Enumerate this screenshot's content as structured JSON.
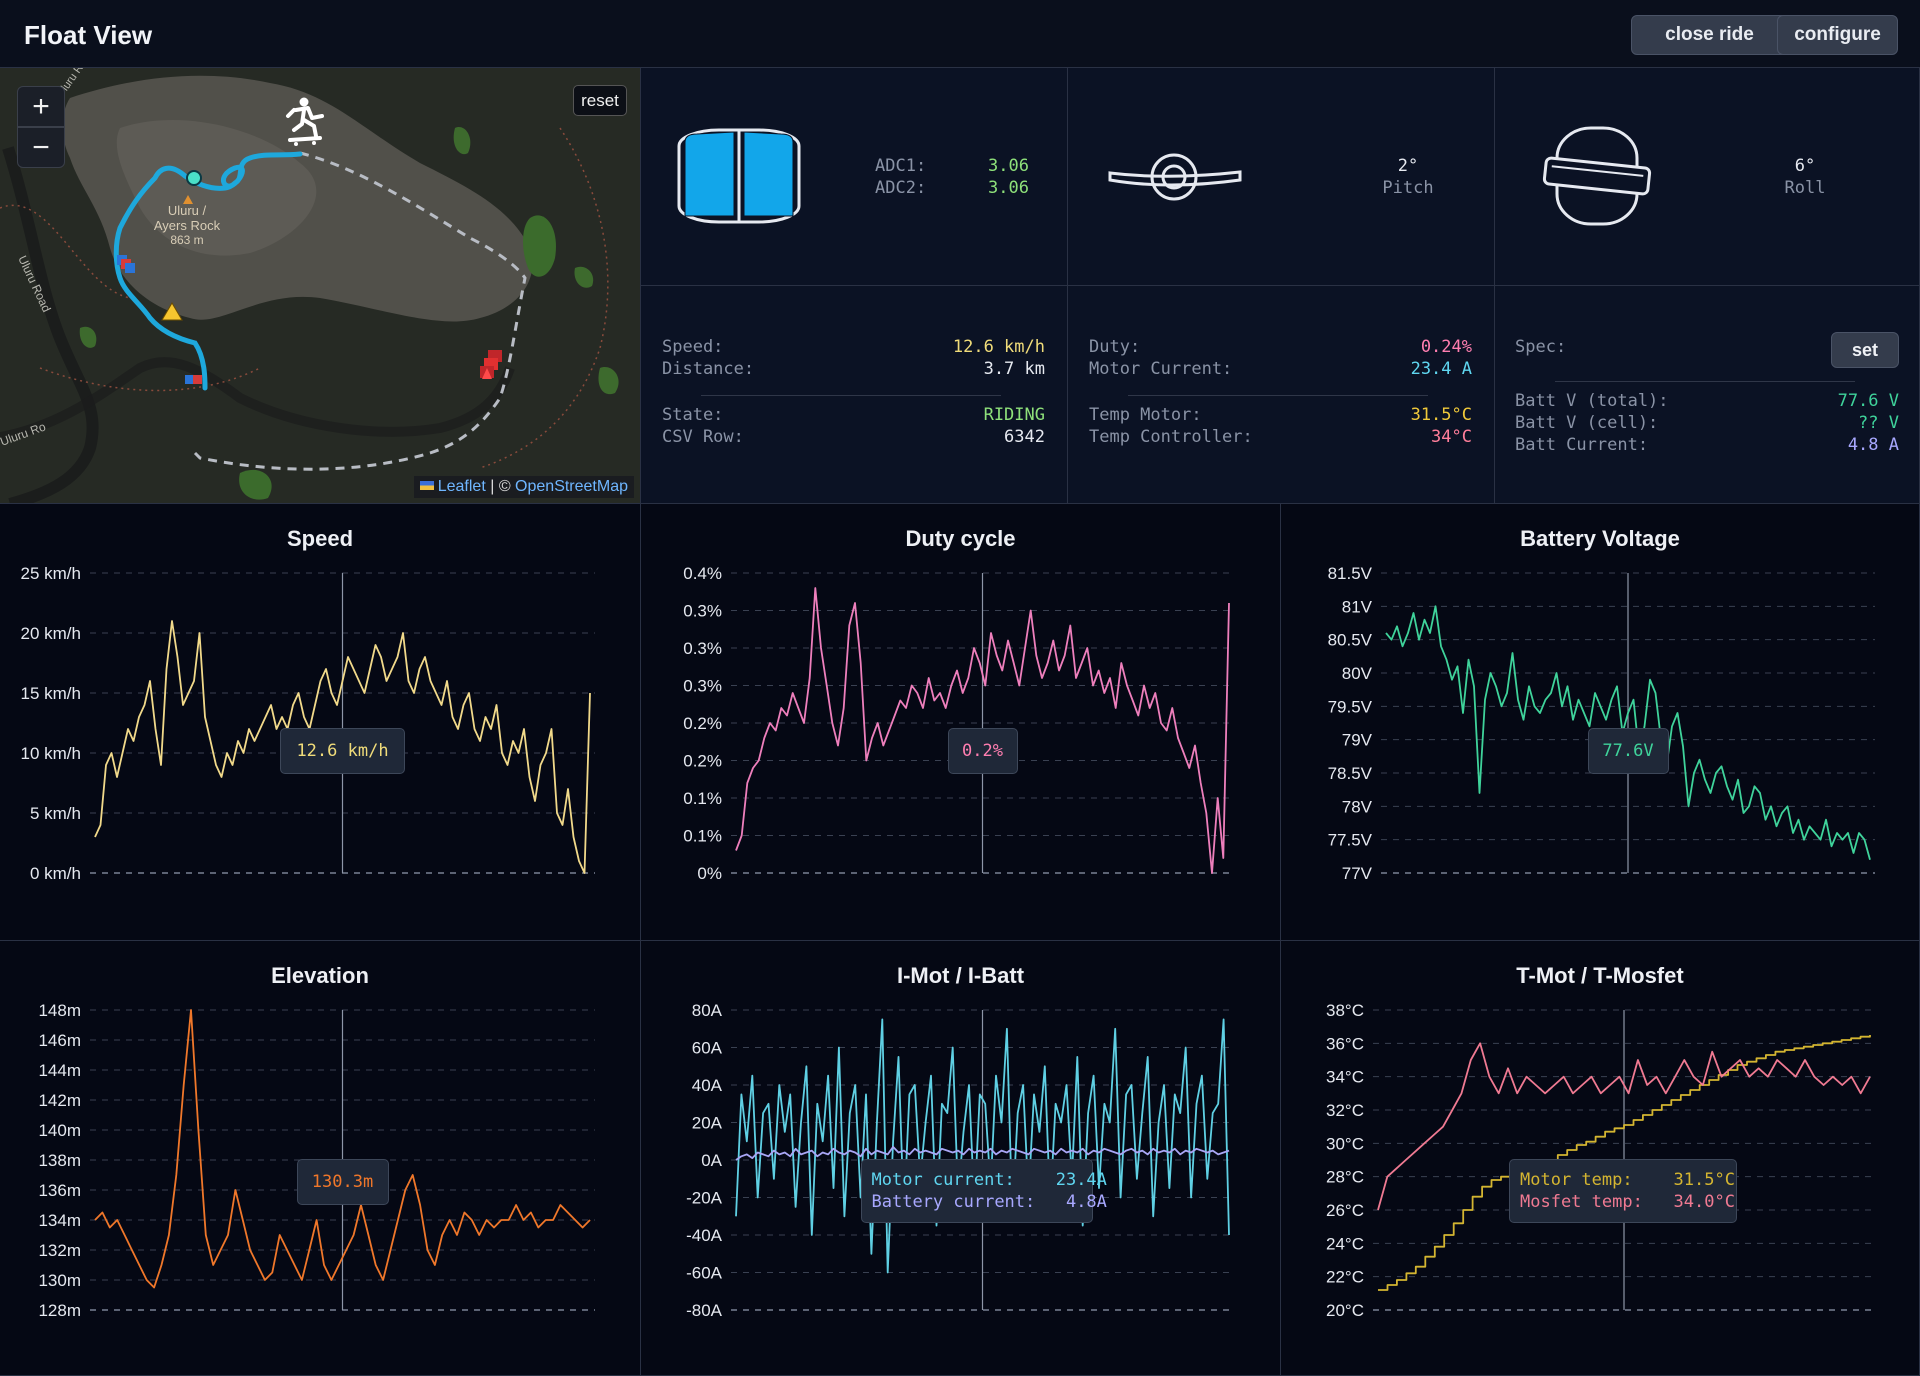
{
  "header": {
    "title": "Float View",
    "close_ride_label": "close ride",
    "configure_label": "configure"
  },
  "map": {
    "zoom_in": "+",
    "zoom_out": "−",
    "reset_label": "reset",
    "place_label_line1": "Uluru /",
    "place_label_line2": "Ayers Rock",
    "place_label_line3": "863 m",
    "road_label_1": "Uluru Road",
    "road_label_2": "Uluru Road",
    "road_label_3": "Uluru Ro",
    "attribution_leaflet": "Leaflet",
    "attribution_sep": " | © ",
    "attribution_osm": "OpenStreetMap"
  },
  "adc": {
    "adc1_label": "ADC1:",
    "adc1_value": "3.06",
    "adc2_label": "ADC2:",
    "adc2_value": "3.06"
  },
  "pitch": {
    "value": "2°",
    "label": "Pitch"
  },
  "roll": {
    "value": "6°",
    "label": "Roll"
  },
  "ride": {
    "speed_label": "Speed:",
    "speed_value": "12.6 km/h",
    "distance_label": "Distance:",
    "distance_value": "3.7 km",
    "state_label": "State:",
    "state_value": "RIDING",
    "csv_row_label": "CSV Row:",
    "csv_row_value": "6342"
  },
  "motor": {
    "duty_label": "Duty:",
    "duty_value": "0.24%",
    "motor_current_label": "Motor Current:",
    "motor_current_value": "23.4 A",
    "temp_motor_label": "Temp Motor:",
    "temp_motor_value": "31.5°C",
    "temp_controller_label": "Temp Controller:",
    "temp_controller_value": "34°C"
  },
  "battery": {
    "spec_label": "Spec:",
    "set_label": "set",
    "batt_v_total_label": "Batt V (total):",
    "batt_v_total_value": "77.6 V",
    "batt_v_cell_label": "Batt V (cell):",
    "batt_v_cell_value": "?? V",
    "batt_current_label": "Batt Current:",
    "batt_current_value": "4.8 A"
  },
  "colors": {
    "speed": "#f1d98a",
    "duty": "#ee7fbc",
    "voltage": "#3fd39b",
    "elevation": "#f0772a",
    "motor_current": "#5fd0e4",
    "battery_current": "#a9a6f5",
    "motor_temp": "#d4b531",
    "mosfet_temp": "#f07a92",
    "value_yellow": "#f0dc7a",
    "value_green": "#8ee07a",
    "value_pink": "#ff7eb0",
    "value_cyan": "#5fd6f0",
    "value_violet": "#a8a8ff",
    "track": "#1ea8dc"
  },
  "chart_data": [
    {
      "id": "speed",
      "type": "line",
      "title": "Speed",
      "ylim": [
        0,
        25
      ],
      "yticks": [
        "0 km/h",
        "5 km/h",
        "10 km/h",
        "15 km/h",
        "20 km/h",
        "25 km/h"
      ],
      "cursor_fraction": 0.5,
      "tooltip": "12.6 km/h",
      "series": [
        {
          "values": [
            3,
            4,
            9,
            10,
            8,
            10,
            12,
            11,
            13,
            14,
            16,
            12,
            9,
            17,
            21,
            18,
            14,
            15,
            16,
            20,
            13,
            11,
            9,
            8,
            10,
            9,
            11,
            10,
            12,
            11,
            12,
            13,
            14,
            12,
            13,
            12,
            14,
            15,
            13,
            12,
            14,
            16,
            17,
            15,
            14,
            16,
            18,
            17,
            16,
            15,
            17,
            19,
            18,
            16,
            17,
            18,
            20,
            16,
            15,
            17,
            18,
            16,
            15,
            14,
            16,
            13,
            12,
            14,
            15,
            12,
            11,
            13,
            12,
            14,
            10,
            9,
            11,
            10,
            12,
            8,
            6,
            9,
            10,
            12,
            5,
            4,
            7,
            3,
            1,
            0,
            15
          ]
        }
      ]
    },
    {
      "id": "duty",
      "type": "line",
      "title": "Duty cycle",
      "ylim": [
        0,
        0.4
      ],
      "yticks": [
        "0%",
        "0.1%",
        "0.1%",
        "0.2%",
        "0.2%",
        "0.3%",
        "0.3%",
        "0.3%",
        "0.4%"
      ],
      "cursor_fraction": 0.5,
      "tooltip": "0.2%",
      "series": [
        {
          "values": [
            0.03,
            0.05,
            0.12,
            0.14,
            0.15,
            0.18,
            0.2,
            0.19,
            0.22,
            0.21,
            0.24,
            0.22,
            0.2,
            0.26,
            0.38,
            0.3,
            0.25,
            0.2,
            0.17,
            0.22,
            0.33,
            0.36,
            0.28,
            0.15,
            0.18,
            0.2,
            0.17,
            0.19,
            0.21,
            0.23,
            0.22,
            0.25,
            0.24,
            0.22,
            0.26,
            0.23,
            0.24,
            0.22,
            0.25,
            0.27,
            0.24,
            0.26,
            0.3,
            0.28,
            0.25,
            0.32,
            0.29,
            0.27,
            0.31,
            0.28,
            0.25,
            0.3,
            0.35,
            0.29,
            0.26,
            0.28,
            0.31,
            0.27,
            0.29,
            0.33,
            0.26,
            0.28,
            0.3,
            0.25,
            0.27,
            0.24,
            0.26,
            0.22,
            0.28,
            0.25,
            0.23,
            0.21,
            0.25,
            0.22,
            0.24,
            0.2,
            0.19,
            0.22,
            0.18,
            0.16,
            0.14,
            0.17,
            0.12,
            0.08,
            0.0,
            0.1,
            0.02,
            0.36
          ]
        }
      ]
    },
    {
      "id": "battery_voltage",
      "type": "line",
      "title": "Battery Voltage",
      "ylim": [
        77,
        81.5
      ],
      "yticks": [
        "77V",
        "77.5V",
        "78V",
        "78.5V",
        "79V",
        "79.5V",
        "80V",
        "80.5V",
        "81V",
        "81.5V"
      ],
      "cursor_fraction": 0.5,
      "tooltip": "77.6V",
      "series": [
        {
          "values": [
            80.6,
            80.5,
            80.7,
            80.4,
            80.6,
            80.9,
            80.5,
            80.8,
            80.6,
            81.0,
            80.4,
            80.2,
            79.9,
            80.1,
            79.4,
            80.2,
            79.8,
            78.2,
            79.6,
            80.0,
            79.8,
            79.5,
            79.7,
            80.3,
            79.6,
            79.3,
            79.8,
            79.5,
            79.4,
            79.6,
            79.7,
            80.0,
            79.5,
            79.8,
            79.3,
            79.6,
            79.4,
            79.2,
            79.7,
            79.5,
            79.3,
            79.6,
            79.8,
            79.1,
            79.4,
            79.6,
            78.8,
            79.2,
            79.9,
            79.7,
            79.0,
            78.6,
            79.2,
            79.4,
            78.9,
            78.0,
            78.5,
            78.7,
            78.4,
            78.2,
            78.5,
            78.6,
            78.3,
            78.1,
            78.4,
            77.9,
            78.0,
            78.3,
            78.2,
            77.8,
            78.0,
            77.7,
            77.9,
            78.0,
            77.6,
            77.8,
            77.5,
            77.7,
            77.6,
            77.5,
            77.8,
            77.4,
            77.6,
            77.5,
            77.6,
            77.3,
            77.6,
            77.5,
            77.2
          ]
        }
      ]
    },
    {
      "id": "elevation",
      "type": "line",
      "title": "Elevation",
      "ylim": [
        128,
        148
      ],
      "yticks": [
        "128m",
        "130m",
        "132m",
        "134m",
        "136m",
        "138m",
        "140m",
        "142m",
        "144m",
        "146m",
        "148m"
      ],
      "cursor_fraction": 0.5,
      "tooltip": "130.3m",
      "series": [
        {
          "values": [
            134,
            134.5,
            133.5,
            134,
            133,
            132,
            131,
            130,
            129.5,
            131,
            133,
            137,
            143,
            148,
            140,
            133,
            131,
            132,
            133,
            136,
            134,
            132,
            131,
            130,
            130.5,
            133,
            132,
            131,
            130,
            132,
            134,
            131,
            130,
            131,
            132,
            133,
            135,
            133,
            131,
            130,
            132,
            134,
            136,
            137,
            135,
            132,
            131,
            133,
            134,
            133,
            134.5,
            134,
            133,
            134,
            133.5,
            134,
            134,
            135,
            134,
            134.5,
            133.5,
            134,
            134,
            135,
            134.5,
            134,
            133.5,
            134
          ]
        }
      ]
    },
    {
      "id": "currents",
      "type": "line",
      "title": "I-Mot / I-Batt",
      "ylim": [
        -80,
        80
      ],
      "yticks": [
        "-80A",
        "-60A",
        "-40A",
        "-20A",
        "0A",
        "20A",
        "40A",
        "60A",
        "80A"
      ],
      "cursor_fraction": 0.5,
      "tooltip_lines": [
        "Motor current:    23.4A",
        "Battery current:   4.8A"
      ],
      "series": [
        {
          "name": "Motor current",
          "values": [
            -30,
            35,
            10,
            45,
            -20,
            25,
            30,
            -10,
            40,
            15,
            35,
            -25,
            20,
            50,
            -40,
            30,
            10,
            45,
            -15,
            60,
            -30,
            25,
            40,
            -20,
            35,
            -50,
            20,
            75,
            -60,
            10,
            55,
            -30,
            35,
            40,
            -10,
            20,
            45,
            -35,
            30,
            25,
            60,
            -20,
            15,
            40,
            -25,
            35,
            30,
            -15,
            45,
            20,
            70,
            -30,
            25,
            40,
            -20,
            35,
            15,
            50,
            -25,
            30,
            20,
            40,
            -10,
            55,
            -35,
            25,
            45,
            -15,
            30,
            20,
            70,
            -20,
            35,
            40,
            -10,
            25,
            55,
            -30,
            20,
            40,
            -15,
            35,
            25,
            60,
            -20,
            30,
            45,
            -10,
            25,
            30,
            75,
            -40
          ]
        },
        {
          "name": "Battery current",
          "values": [
            0,
            2,
            3,
            1,
            4,
            3,
            2,
            5,
            3,
            4,
            2,
            6,
            3,
            4,
            5,
            2,
            4,
            3,
            6,
            4,
            3,
            5,
            4,
            2,
            6,
            3,
            5,
            4,
            3,
            7,
            4,
            5,
            3,
            6,
            4,
            5,
            4,
            3,
            6,
            5,
            4,
            5,
            3,
            6,
            4,
            5,
            4,
            6,
            3,
            5,
            4,
            6,
            5,
            4,
            3,
            6,
            5,
            4,
            5,
            3,
            6,
            4,
            5,
            4,
            6,
            3,
            5,
            4,
            6,
            5,
            4,
            3,
            5,
            6,
            4,
            5,
            3,
            6,
            4,
            5,
            4,
            6,
            3,
            5,
            4,
            6,
            5,
            4,
            5,
            3,
            4,
            5
          ]
        }
      ]
    },
    {
      "id": "temps",
      "type": "line",
      "title": "T-Mot / T-Mosfet",
      "ylim": [
        20,
        38
      ],
      "yticks": [
        "20°C",
        "22°C",
        "24°C",
        "26°C",
        "28°C",
        "30°C",
        "32°C",
        "34°C",
        "36°C",
        "38°C"
      ],
      "cursor_fraction": 0.5,
      "tooltip_lines": [
        "Motor temp:    31.5°C",
        "Mosfet temp:   34.0°C"
      ],
      "series": [
        {
          "name": "Motor temp",
          "values": [
            21.2,
            21.5,
            21.8,
            22.2,
            22.6,
            23.2,
            23.8,
            24.5,
            25.2,
            26.0,
            26.8,
            27.4,
            27.8,
            28.0,
            28.2,
            28.4,
            28.6,
            28.8,
            29.0,
            29.3,
            29.6,
            29.9,
            30.1,
            30.4,
            30.7,
            30.9,
            31.1,
            31.4,
            31.7,
            32.0,
            32.3,
            32.6,
            32.9,
            33.2,
            33.5,
            33.8,
            34.1,
            34.4,
            34.7,
            34.9,
            35.1,
            35.3,
            35.5,
            35.6,
            35.7,
            35.8,
            35.9,
            36.0,
            36.1,
            36.2,
            36.3,
            36.4,
            36.5
          ]
        },
        {
          "name": "Mosfet temp",
          "values": [
            26,
            28,
            28.5,
            29,
            29.5,
            30,
            30.5,
            31,
            32,
            33,
            35,
            36,
            34,
            33,
            34.5,
            33,
            34,
            33.5,
            33,
            33.5,
            34,
            33,
            33.5,
            34,
            33,
            33.5,
            34,
            33,
            35,
            33.5,
            34,
            33,
            34,
            35,
            34,
            33.5,
            35.5,
            34,
            34.5,
            35,
            34,
            34.5,
            34,
            35,
            34.5,
            34,
            35,
            34,
            33.5,
            34,
            33.5,
            34,
            33,
            34
          ]
        }
      ]
    }
  ]
}
